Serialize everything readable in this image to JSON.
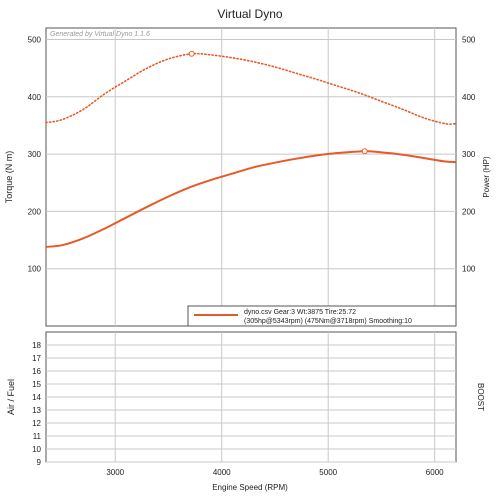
{
  "chart_data": [
    {
      "type": "line",
      "title": "Virtual Dyno",
      "watermark": "Generated by Virtual Dyno 1.1.6",
      "xlabel": "Engine Speed (RPM)",
      "ylabel": "Torque (N m)",
      "y2label": "Power (HP)",
      "xlim": [
        2350,
        6200
      ],
      "ylim": [
        0,
        520
      ],
      "y2lim": [
        0,
        520
      ],
      "x_ticks": [
        3000,
        4000,
        5000,
        6000
      ],
      "y_ticks": [
        100,
        200,
        300,
        400,
        500
      ],
      "y2_ticks": [
        100,
        200,
        300,
        400,
        500
      ],
      "grid": true,
      "legend": {
        "position": "bottom-right",
        "line1": "dyno.csv Gear:3 Wt:3875 Tire:25.72",
        "line2": "(305hp@5343rpm) (475Nm@3718rpm) Smoothing:10"
      },
      "series": [
        {
          "name": "Power",
          "style": "solid",
          "color": "#e65a28",
          "x": [
            2350,
            2500,
            2700,
            2900,
            3100,
            3300,
            3500,
            3700,
            3900,
            4100,
            4300,
            4500,
            4700,
            4900,
            5100,
            5343,
            5500,
            5700,
            5900,
            6100,
            6200
          ],
          "values": [
            138,
            141,
            153,
            170,
            189,
            208,
            226,
            242,
            255,
            266,
            277,
            285,
            292,
            298,
            302,
            305,
            303,
            299,
            293,
            287,
            286
          ]
        },
        {
          "name": "Torque",
          "style": "dotted",
          "color": "#e65a28",
          "x": [
            2350,
            2500,
            2700,
            2900,
            3100,
            3300,
            3500,
            3718,
            3900,
            4100,
            4300,
            4500,
            4700,
            4900,
            5100,
            5300,
            5500,
            5700,
            5900,
            6100,
            6200
          ],
          "values": [
            355,
            360,
            378,
            405,
            428,
            450,
            466,
            475,
            473,
            468,
            461,
            452,
            441,
            430,
            418,
            406,
            392,
            378,
            363,
            353,
            353
          ]
        }
      ],
      "markers": [
        {
          "series": "Power",
          "x": 5343,
          "value": 305
        },
        {
          "series": "Torque",
          "x": 3718,
          "value": 475
        }
      ]
    },
    {
      "type": "line",
      "ylabel": "Air / Fuel",
      "y2label": "BOOST",
      "xlim": [
        2350,
        6200
      ],
      "ylim": [
        9,
        19
      ],
      "y_ticks": [
        9,
        10,
        11,
        12,
        13,
        14,
        15,
        16,
        17,
        18
      ],
      "grid": true,
      "series": []
    }
  ]
}
